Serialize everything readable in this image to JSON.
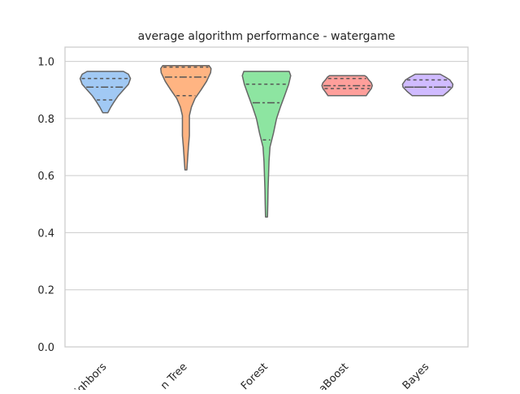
{
  "chart_data": {
    "type": "violin",
    "title": "average algorithm performance - watergame",
    "xlabel": "",
    "ylabel": "",
    "ylim": [
      0.0,
      1.05
    ],
    "yticks": [
      0.0,
      0.2,
      0.4,
      0.6,
      0.8,
      1.0
    ],
    "ytick_labels": [
      "0.0",
      "0.2",
      "0.4",
      "0.6",
      "0.8",
      "1.0"
    ],
    "grid": "horizontal",
    "categories": [
      "ighbors",
      "n Tree",
      "Forest",
      "aBoost",
      "Bayes"
    ],
    "colors": [
      "#a1c9f4",
      "#ffb482",
      "#8de5a1",
      "#ff9f9b",
      "#d0bbff"
    ],
    "series": [
      {
        "min": 0.82,
        "q1": 0.865,
        "median": 0.91,
        "q3": 0.94,
        "max": 0.965,
        "profile": [
          [
            0.82,
            0.1
          ],
          [
            0.84,
            0.22
          ],
          [
            0.86,
            0.36
          ],
          [
            0.88,
            0.52
          ],
          [
            0.9,
            0.72
          ],
          [
            0.92,
            0.92
          ],
          [
            0.94,
            1.0
          ],
          [
            0.955,
            0.92
          ],
          [
            0.965,
            0.72
          ]
        ]
      },
      {
        "min": 0.62,
        "q1": 0.88,
        "median": 0.945,
        "q3": 0.98,
        "max": 0.985,
        "profile": [
          [
            0.62,
            0.04
          ],
          [
            0.65,
            0.06
          ],
          [
            0.7,
            0.1
          ],
          [
            0.74,
            0.14
          ],
          [
            0.78,
            0.14
          ],
          [
            0.81,
            0.14
          ],
          [
            0.84,
            0.22
          ],
          [
            0.87,
            0.36
          ],
          [
            0.9,
            0.6
          ],
          [
            0.93,
            0.82
          ],
          [
            0.96,
            0.98
          ],
          [
            0.975,
            1.0
          ],
          [
            0.985,
            0.92
          ]
        ]
      },
      {
        "min": 0.455,
        "q1": 0.725,
        "median": 0.855,
        "q3": 0.92,
        "max": 0.965,
        "profile": [
          [
            0.455,
            0.04
          ],
          [
            0.5,
            0.05
          ],
          [
            0.55,
            0.06
          ],
          [
            0.6,
            0.08
          ],
          [
            0.65,
            0.1
          ],
          [
            0.7,
            0.14
          ],
          [
            0.75,
            0.28
          ],
          [
            0.8,
            0.4
          ],
          [
            0.84,
            0.55
          ],
          [
            0.88,
            0.72
          ],
          [
            0.92,
            0.88
          ],
          [
            0.95,
            0.96
          ],
          [
            0.965,
            0.9
          ]
        ]
      },
      {
        "min": 0.88,
        "q1": 0.905,
        "median": 0.915,
        "q3": 0.94,
        "max": 0.95,
        "profile": [
          [
            0.88,
            0.76
          ],
          [
            0.89,
            0.84
          ],
          [
            0.905,
            0.96
          ],
          [
            0.915,
            1.0
          ],
          [
            0.925,
            0.96
          ],
          [
            0.935,
            0.86
          ],
          [
            0.945,
            0.78
          ],
          [
            0.95,
            0.7
          ]
        ]
      },
      {
        "min": 0.88,
        "q1": 0.91,
        "median": 0.91,
        "q3": 0.935,
        "max": 0.955,
        "profile": [
          [
            0.88,
            0.62
          ],
          [
            0.895,
            0.82
          ],
          [
            0.91,
            0.98
          ],
          [
            0.92,
            1.0
          ],
          [
            0.935,
            0.88
          ],
          [
            0.945,
            0.7
          ],
          [
            0.955,
            0.5
          ]
        ]
      }
    ]
  }
}
